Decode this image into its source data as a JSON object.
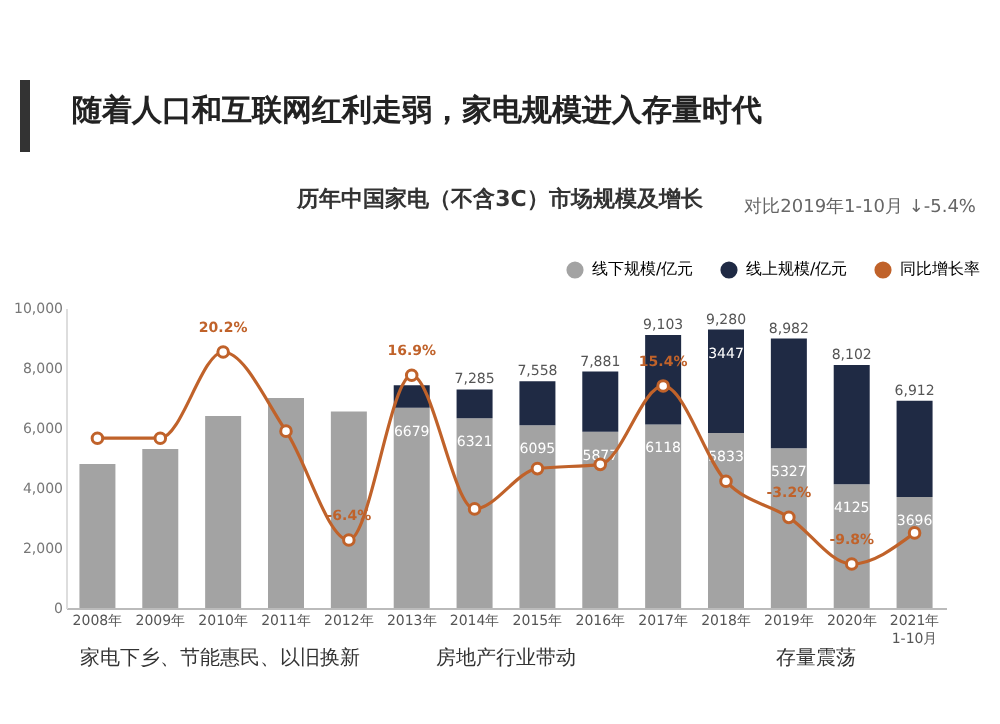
{
  "chart_data": {
    "type": "bar",
    "stacked": true,
    "title": "随着人口和互联网红利走弱，家电规模进入存量时代",
    "subtitle": "历年中国家电（不含3C）市场规模及增长",
    "categories": [
      "2008年",
      "2009年",
      "2010年",
      "2011年",
      "2012年",
      "2013年",
      "2014年",
      "2015年",
      "2016年",
      "2017年",
      "2018年",
      "2019年",
      "2020年",
      "2021年1-10月"
    ],
    "series": [
      {
        "name": "线下规模/亿元",
        "color": "#a3a3a3",
        "values": [
          4800,
          5300,
          6400,
          7000,
          6550,
          6679,
          6321,
          6095,
          5877,
          6118,
          5833,
          5327,
          4125,
          3696
        ],
        "value_labels": [
          null,
          null,
          null,
          null,
          null,
          "6679",
          "6321",
          "6095",
          "5877",
          "6118",
          "5833",
          "5327",
          "4125",
          "3696"
        ]
      },
      {
        "name": "线上规模/亿元",
        "color": "#1f2a44",
        "values": [
          null,
          null,
          null,
          null,
          null,
          750,
          964,
          1463,
          2004,
          2985,
          3447,
          3655,
          3977,
          3216
        ],
        "value_labels": [
          null,
          null,
          null,
          null,
          null,
          null,
          null,
          null,
          null,
          null,
          "3447",
          null,
          null,
          null
        ]
      },
      {
        "name": "同比增长率",
        "type": "line",
        "axis": "y2",
        "color": "#c0622a",
        "marker": "circle",
        "values": [
          8,
          8,
          20.2,
          9,
          -6.4,
          16.9,
          -2,
          3.7,
          4.3,
          15.4,
          1.9,
          -3.2,
          -9.8,
          -5.4
        ],
        "value_labels": [
          null,
          null,
          "20.2%",
          null,
          "-6.4%",
          "16.9%",
          null,
          null,
          null,
          "15.4%",
          null,
          "-3.2%",
          "-9.8%",
          null
        ]
      }
    ],
    "totals": [
      null,
      null,
      null,
      null,
      null,
      null,
      "7,285",
      "7,558",
      "7,881",
      "9,103",
      "9,280",
      "8,982",
      "8,102",
      "6,912"
    ],
    "ylim": [
      0,
      10000
    ],
    "yticks": [
      0,
      {
        "value": 2000,
        "label": "2,000"
      },
      {
        "value": 4000,
        "label": "4,000"
      },
      {
        "value": 6000,
        "label": "6,000"
      },
      {
        "value": 8000,
        "label": "8,000"
      },
      {
        "value": 10000,
        "label": "10,000"
      }
    ],
    "legend": "top right",
    "grid": false,
    "annotations": [
      "对比2019年1-10月 ↓-5.4%",
      "家电下乡、节能惠民、以旧换新",
      "房地产行业带动",
      "存量震荡"
    ]
  }
}
